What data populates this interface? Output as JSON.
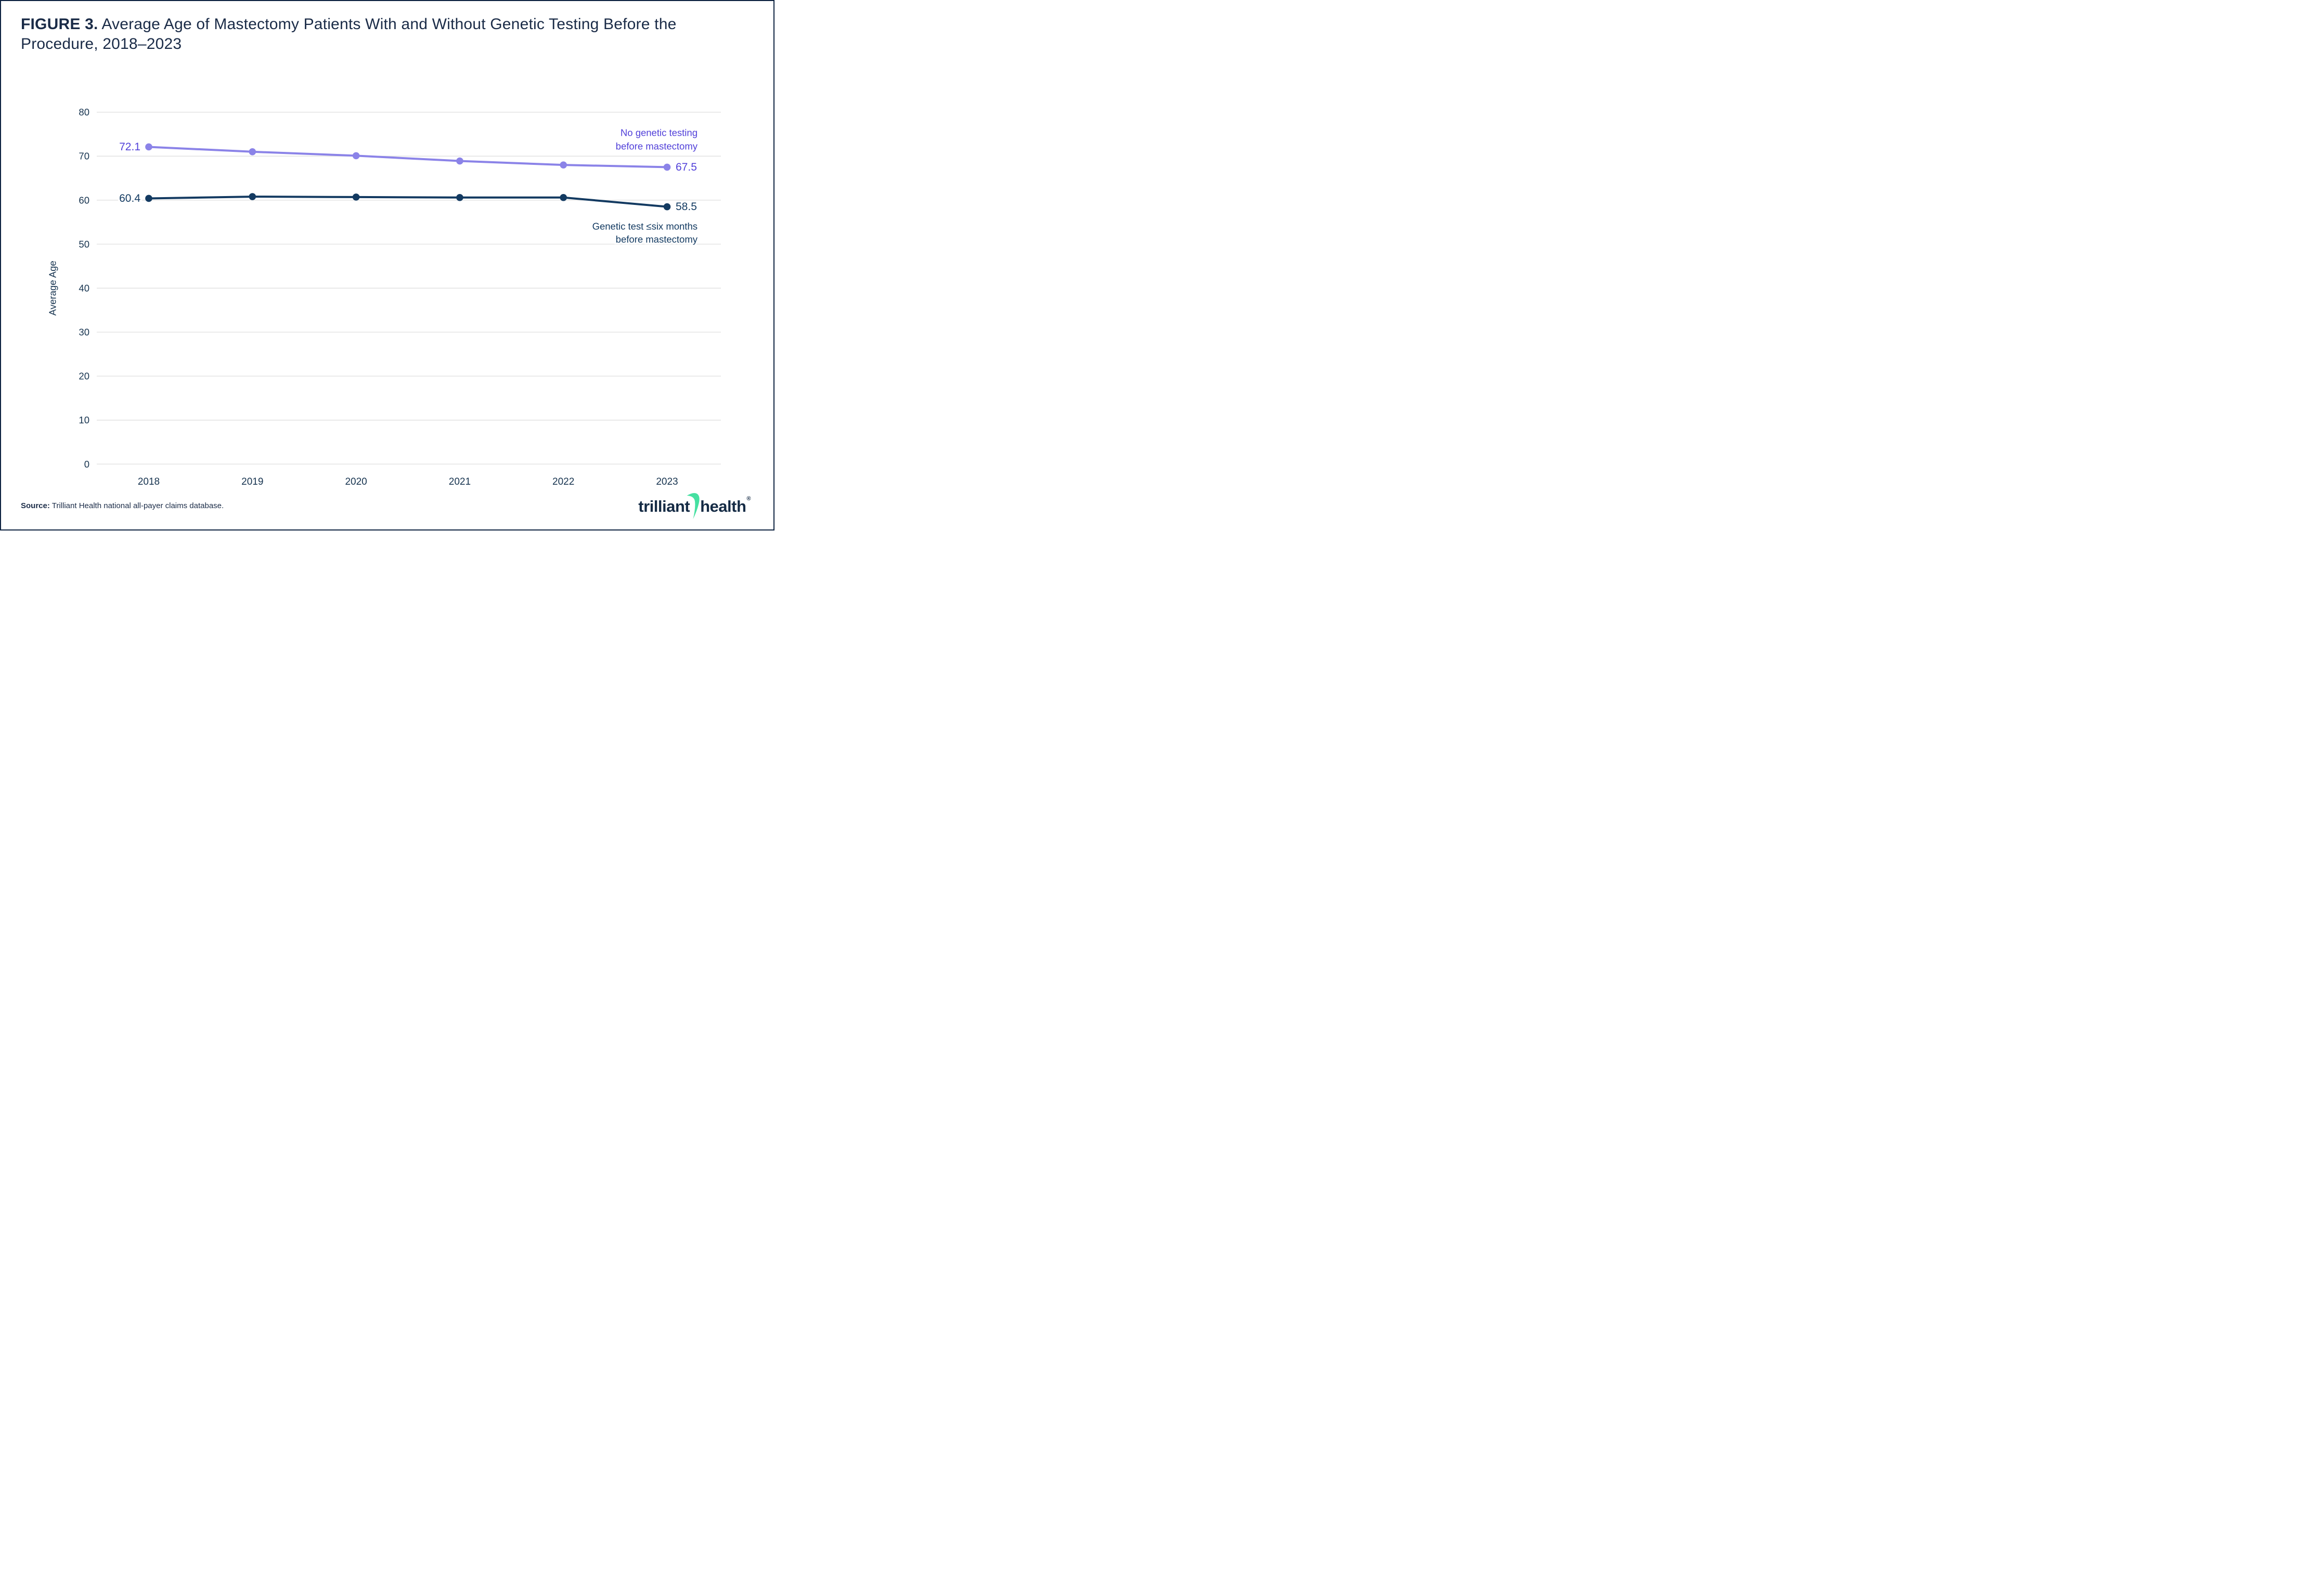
{
  "figure": {
    "title_prefix": "FIGURE 3.",
    "title_rest": " Average Age of Mastectomy Patients With and Without Genetic Testing Before the Procedure, 2018–2023"
  },
  "source": {
    "label": "Source:",
    "text": " Trilliant Health national all-payer claims database."
  },
  "logo": {
    "trilliant": "trilliant",
    "health": "health",
    "registered": "®",
    "swoosh_color": "#45e0a1"
  },
  "colors": {
    "title_navy": "#1a2b47",
    "tick_navy": "#16334f",
    "gridline": "#e2e2e2",
    "purple_line": "#8b83e8",
    "purple_label": "#5140d9",
    "navy_line": "#133a61",
    "background": "#ffffff",
    "border_navy": "#0d2240"
  },
  "chart_data": {
    "type": "line",
    "title": "Average Age of Mastectomy Patients With and Without Genetic Testing Before the Procedure, 2018–2023",
    "xlabel": "",
    "ylabel": "Average Age",
    "ylim": [
      0,
      80
    ],
    "yticks": [
      0,
      10,
      20,
      30,
      40,
      50,
      60,
      70,
      80
    ],
    "grid": "horizontal",
    "legend_position": "inline-annotations",
    "categories": [
      "2018",
      "2019",
      "2020",
      "2021",
      "2022",
      "2023"
    ],
    "series": [
      {
        "name": "No genetic testing before mastectomy",
        "values": [
          72.1,
          71.0,
          70.1,
          68.9,
          68.0,
          67.5
        ],
        "color": "#8b83e8",
        "label_color": "#5140d9",
        "endpoint_labels": {
          "first": "72.1",
          "last": "67.5"
        },
        "annotation_lines": [
          "No genetic testing",
          "before mastectomy"
        ]
      },
      {
        "name": "Genetic test ≤six months before mastectomy",
        "values": [
          60.4,
          60.8,
          60.7,
          60.6,
          60.6,
          58.5
        ],
        "color": "#133a61",
        "label_color": "#133a61",
        "endpoint_labels": {
          "first": "60.4",
          "last": "58.5"
        },
        "annotation_lines": [
          "Genetic test ≤six months",
          "before mastectomy"
        ]
      }
    ]
  }
}
